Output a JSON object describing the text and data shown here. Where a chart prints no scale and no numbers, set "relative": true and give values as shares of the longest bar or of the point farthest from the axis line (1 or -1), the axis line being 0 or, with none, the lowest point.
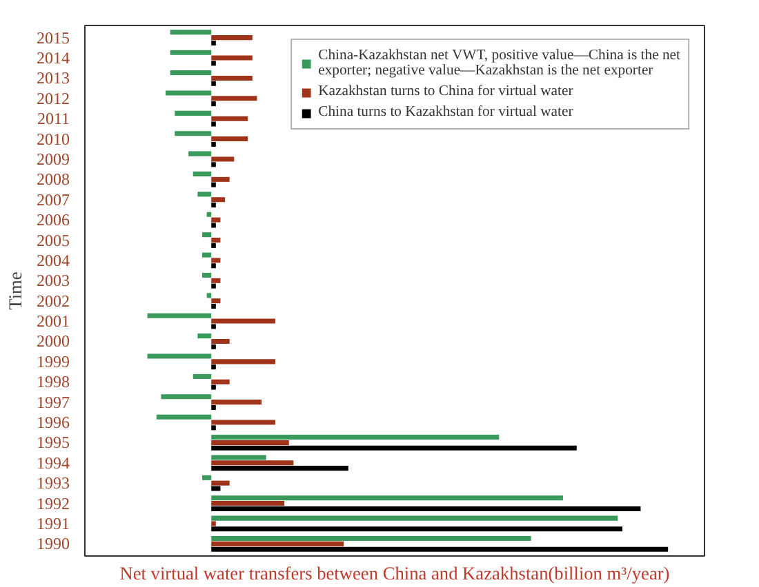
{
  "chart_data": {
    "type": "bar",
    "orientation": "horizontal",
    "relative": true,
    "xlabel": "Net virtual water transfers between China and Kazakhstan(billion m³/year)",
    "ylabel": "Time",
    "categories": [
      "2015",
      "2014",
      "2013",
      "2012",
      "2011",
      "2010",
      "2009",
      "2008",
      "2007",
      "2006",
      "2005",
      "2004",
      "2003",
      "2002",
      "2001",
      "2000",
      "1999",
      "1998",
      "1997",
      "1996",
      "1995",
      "1994",
      "1993",
      "1992",
      "1991",
      "1990"
    ],
    "series": [
      {
        "name": "China-Kazakhstan net VWT, positive value—China is the net exporter; negative value—Kazakhstan is the net exporter",
        "color": "#3a9a5c",
        "values": [
          -0.09,
          -0.09,
          -0.09,
          -0.1,
          -0.08,
          -0.08,
          -0.05,
          -0.04,
          -0.03,
          -0.01,
          -0.02,
          -0.02,
          -0.02,
          -0.01,
          -0.14,
          -0.03,
          -0.14,
          -0.04,
          -0.11,
          -0.12,
          0.63,
          0.12,
          -0.02,
          0.77,
          0.89,
          0.7
        ]
      },
      {
        "name": "Kazakhstan turns to China for virtual water",
        "color": "#a0341a",
        "values": [
          0.09,
          0.09,
          0.09,
          0.1,
          0.08,
          0.08,
          0.05,
          0.04,
          0.03,
          0.02,
          0.02,
          0.02,
          0.02,
          0.02,
          0.14,
          0.04,
          0.14,
          0.04,
          0.11,
          0.14,
          0.17,
          0.18,
          0.04,
          0.16,
          0.01,
          0.29
        ]
      },
      {
        "name": "China turns to Kazakhstan for virtual water",
        "color": "#000000",
        "values": [
          0.01,
          0.01,
          0.01,
          0.01,
          0.01,
          0.01,
          0.01,
          0.01,
          0.01,
          0.01,
          0.01,
          0.01,
          0.01,
          0.01,
          0.01,
          0.01,
          0.01,
          0.01,
          0.01,
          0.01,
          0.8,
          0.3,
          0.02,
          0.94,
          0.9,
          1.0
        ]
      }
    ],
    "legend": "top right",
    "grid": false
  }
}
